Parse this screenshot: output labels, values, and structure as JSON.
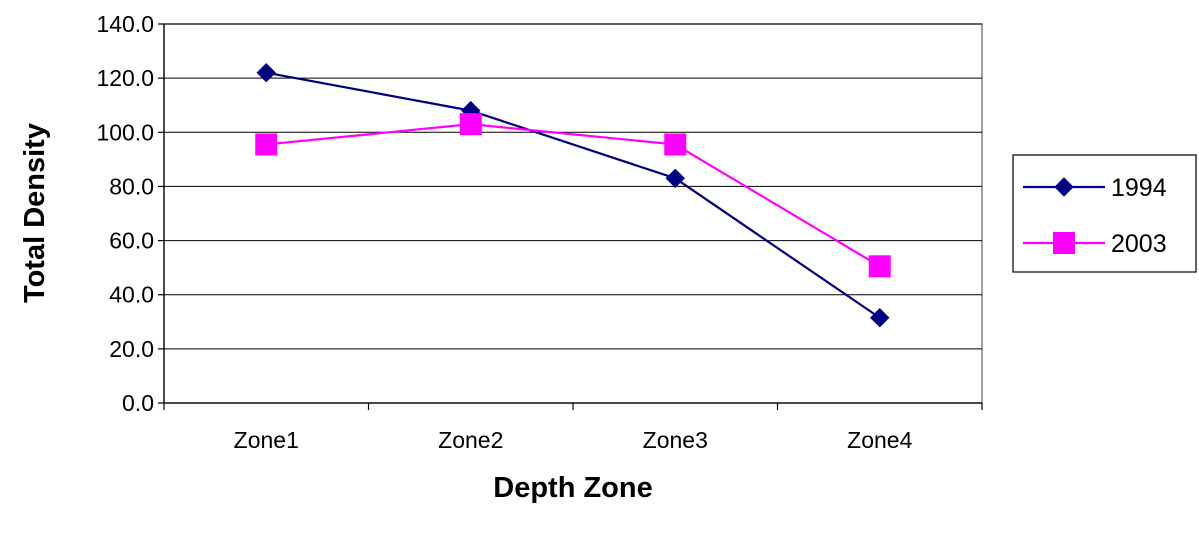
{
  "chart_data": {
    "type": "line",
    "title": "",
    "xlabel": "Depth Zone",
    "ylabel": "Total Density",
    "categories": [
      "Zone1",
      "Zone2",
      "Zone3",
      "Zone4"
    ],
    "ylim": [
      0,
      140
    ],
    "yticks": [
      "0.0",
      "20.0",
      "40.0",
      "60.0",
      "80.0",
      "100.0",
      "120.0",
      "140.0"
    ],
    "grid": true,
    "legend_position": "right",
    "series": [
      {
        "name": "1994",
        "values": [
          122,
          108,
          83,
          31.5
        ],
        "color": "#000080",
        "marker": "diamond"
      },
      {
        "name": "2003",
        "values": [
          95.5,
          103,
          95.5,
          50.5
        ],
        "color": "#ff00ff",
        "marker": "square"
      }
    ]
  }
}
